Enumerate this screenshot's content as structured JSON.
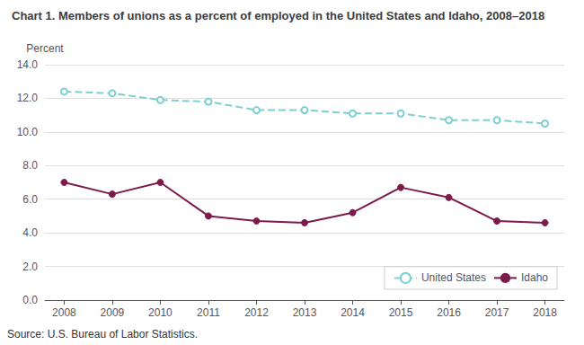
{
  "chart_data": {
    "type": "line",
    "title": "Chart 1. Members of unions as a percent of employed in the United States and Idaho, 2008–2018",
    "ylabel": "Percent",
    "annotations": [
      "Source: U.S. Bureau of Labor Statistics."
    ],
    "x": [
      2008,
      2009,
      2010,
      2011,
      2012,
      2013,
      2014,
      2015,
      2016,
      2017,
      2018
    ],
    "xlim": [
      2007.6,
      2018.4
    ],
    "xticks": [
      2008,
      2009,
      2010,
      2011,
      2012,
      2013,
      2014,
      2015,
      2016,
      2017,
      2018
    ],
    "series": [
      {
        "name": "United States",
        "color": "#7ecfcf",
        "marker": "emptyCircle",
        "line_style": "dashed",
        "values": [
          12.4,
          12.3,
          11.9,
          11.8,
          11.3,
          11.3,
          11.1,
          11.1,
          10.7,
          10.7,
          10.5
        ]
      },
      {
        "name": "Idaho",
        "color": "#7b1a4b",
        "marker": "circle",
        "line_style": "solid",
        "values": [
          7.0,
          6.3,
          7.0,
          5.0,
          4.7,
          4.6,
          5.2,
          6.7,
          6.1,
          4.7,
          4.6
        ]
      }
    ],
    "ylim": [
      0.0,
      14.0
    ],
    "yticks": [
      {
        "value": 0,
        "label": "0.0"
      },
      {
        "value": 2,
        "label": "2.0"
      },
      {
        "value": 4,
        "label": "4.0"
      },
      {
        "value": 6,
        "label": "6.0"
      },
      {
        "value": 8,
        "label": "8.0"
      },
      {
        "value": 10,
        "label": "10.0"
      },
      {
        "value": 12,
        "label": "12.0"
      },
      {
        "value": 14,
        "label": "14.0"
      }
    ],
    "grid": true,
    "legend": "lower right"
  }
}
